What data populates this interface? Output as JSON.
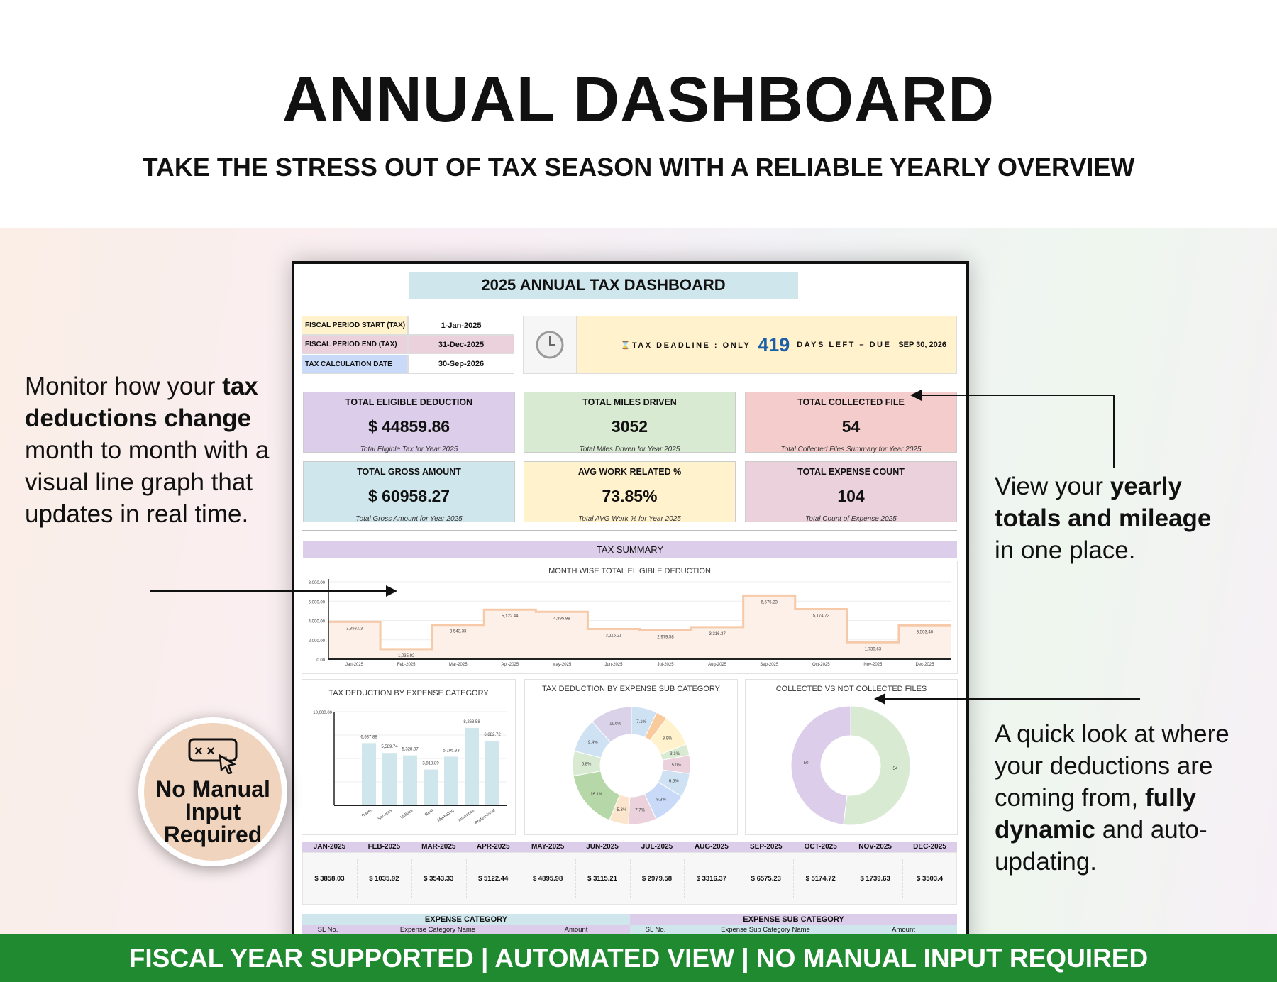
{
  "hero": {
    "title": "ANNUAL DASHBOARD",
    "subtitle": "TAKE THE STRESS OUT OF TAX SEASON WITH A RELIABLE YEARLY OVERVIEW"
  },
  "left_text": {
    "p1": "Monitor how your ",
    "b1": "tax deductions change",
    "p2": " month to month with a visual line graph that updates in real time."
  },
  "right_text_1": {
    "p1": "View your ",
    "b1": "yearly totals and mileage",
    "p2": " in one place."
  },
  "right_text_2": {
    "p1": "A quick look at where your deductions are coming from, ",
    "b1": "fully dynamic",
    "p2": " and auto-updating."
  },
  "badge": {
    "icon": "terminal-cursor-icon",
    "line1": "No Manual",
    "line2": "Input",
    "line3": "Required"
  },
  "footer": "FISCAL YEAR SUPPORTED | AUTOMATED VIEW  | NO MANUAL INPUT REQUIRED",
  "dashboard": {
    "title": "2025 ANNUAL TAX DASHBOARD",
    "info": [
      {
        "label": "FISCAL PERIOD START (TAX)",
        "value": "1-Jan-2025",
        "color": "#fff2cc"
      },
      {
        "label": "FISCAL PERIOD END (TAX)",
        "value": "31-Dec-2025",
        "color": "#ead1dc"
      },
      {
        "label": "TAX CALCULATION DATE",
        "value": "30-Sep-2026",
        "color": "#c9daf8"
      }
    ],
    "deadline": {
      "icon": "clock-icon",
      "prefix": "⌛TAX DEADLINE : ONLY",
      "days": "419",
      "suffix": "DAYS LEFT – DUE",
      "due": "SEP 30, 2026"
    },
    "kpis": [
      {
        "title": "TOTAL ELIGIBLE DEDUCTION",
        "value": "$ 44859.86",
        "sub": "Total Eligible Tax for Year 2025",
        "color": "#dccdea"
      },
      {
        "title": "TOTAL MILES DRIVEN",
        "value": "3052",
        "sub": "Total Miles Driven for Year 2025",
        "color": "#d9ead3"
      },
      {
        "title": "TOTAL COLLECTED FILE",
        "value": "54",
        "sub": "Total Collected Files Summary for Year 2025",
        "color": "#f4cccc"
      },
      {
        "title": "TOTAL GROSS AMOUNT",
        "value": "$ 60958.27",
        "sub": "Total Gross Amount for Year 2025",
        "color": "#cfe6ec"
      },
      {
        "title": "AVG WORK RELATED %",
        "value": "73.85%",
        "sub": "Total AVG Work % for Year 2025",
        "color": "#fff2cc"
      },
      {
        "title": "TOTAL EXPENSE COUNT",
        "value": "104",
        "sub": "Total Count of Expense 2025",
        "color": "#ead1dc"
      }
    ],
    "summary_label": "TAX SUMMARY",
    "months_table": {
      "headers": [
        "JAN-2025",
        "FEB-2025",
        "MAR-2025",
        "APR-2025",
        "MAY-2025",
        "JUN-2025",
        "JUL-2025",
        "AUG-2025",
        "SEP-2025",
        "OCT-2025",
        "NOV-2025",
        "DEC-2025"
      ],
      "values": [
        "$ 3858.03",
        "$ 1035.92",
        "$ 3543.33",
        "$ 5122.44",
        "$ 4895.98",
        "$ 3115.21",
        "$ 2979.58",
        "$ 3316.37",
        "$ 6575.23",
        "$ 5174.72",
        "$ 1739.63",
        "$ 3503.4"
      ]
    },
    "expense_category": {
      "title": "EXPENSE CATEGORY",
      "cols": [
        "SL No.",
        "Expense Category Name",
        "Amount"
      ]
    },
    "expense_sub_category": {
      "title": "EXPENSE SUB CATEGORY",
      "cols": [
        "SL No.",
        "Expense Sub Category Name",
        "Amount"
      ]
    }
  },
  "chart_data": [
    {
      "type": "line",
      "style": "step-area",
      "title": "MONTH WISE TOTAL ELIGIBLE DEDUCTION",
      "categories": [
        "Jan-2025",
        "Feb-2025",
        "Mar-2025",
        "Apr-2025",
        "May-2025",
        "Jun-2025",
        "Jul-2025",
        "Aug-2025",
        "Sep-2025",
        "Oct-2025",
        "Nov-2025",
        "Dec-2025"
      ],
      "values": [
        3858.03,
        1035.92,
        3543.33,
        5122.44,
        4895.98,
        3115.21,
        2979.58,
        3316.37,
        6575.23,
        5174.72,
        1739.63,
        3503.4
      ],
      "labels": [
        "3,858.03",
        "1,035.92",
        "3,543.33",
        "5,122.44",
        "4,895.98",
        "3,115.21",
        "2,979.58",
        "3,316.37",
        "6,575.23",
        "5,174.72",
        "1,739.63",
        "3,503.40"
      ],
      "yticks": [
        "0.00",
        "2,000.00",
        "4,000.00",
        "6,000.00",
        "8,000.00"
      ],
      "ylim": [
        0,
        8000
      ],
      "grid": true,
      "color": "#f6c9a8"
    },
    {
      "type": "bar",
      "title": "TAX DEDUCTION BY EXPENSE CATEGORY",
      "categories": [
        "Travel",
        "Services",
        "Utilities",
        "Rent",
        "Marketing",
        "Insurance",
        "Professional"
      ],
      "values": [
        6637.88,
        5589.74,
        5328.97,
        3818.89,
        5195.33,
        8268.58,
        6882.72
      ],
      "labels": [
        "6,637.88",
        "5,589.74",
        "5,328.97",
        "3,818.89",
        "5,195.33",
        "8,268.58",
        "6,882.72"
      ],
      "ytop_label": "10,000.00",
      "ylim": [
        0,
        10000
      ],
      "grid": true,
      "color": "#cfe6ec"
    },
    {
      "type": "pie",
      "style": "donut",
      "title": "TAX DEDUCTION BY EXPENSE SUB CATEGORY",
      "values": [
        7.1,
        3.1,
        8.9,
        3.1,
        5.0,
        6.6,
        9.3,
        7.7,
        5.3,
        16.1,
        6.8,
        9.4,
        11.6
      ],
      "labels": [
        "7.1%",
        "",
        "8.9%",
        "3.1%",
        "5.0%",
        "6.6%",
        "9.3%",
        "7.7%",
        "5.3%",
        "16.1%",
        "6.8%",
        "9.4%",
        "11.6%"
      ],
      "colors": [
        "#cfe2f3",
        "#f9cb9c",
        "#fff2cc",
        "#d9ead3",
        "#ead1dc",
        "#cfe2f3",
        "#c9daf8",
        "#ead1dc",
        "#fce5cd",
        "#b6d7a8",
        "#d9ead3",
        "#cfe2f3",
        "#d9d2e9"
      ]
    },
    {
      "type": "pie",
      "style": "donut",
      "title": "COLLECTED VS NOT COLLECTED FILES",
      "values": [
        54,
        50
      ],
      "labels": [
        "54",
        "50"
      ],
      "colors": [
        "#d9ead3",
        "#dccdea"
      ]
    }
  ]
}
